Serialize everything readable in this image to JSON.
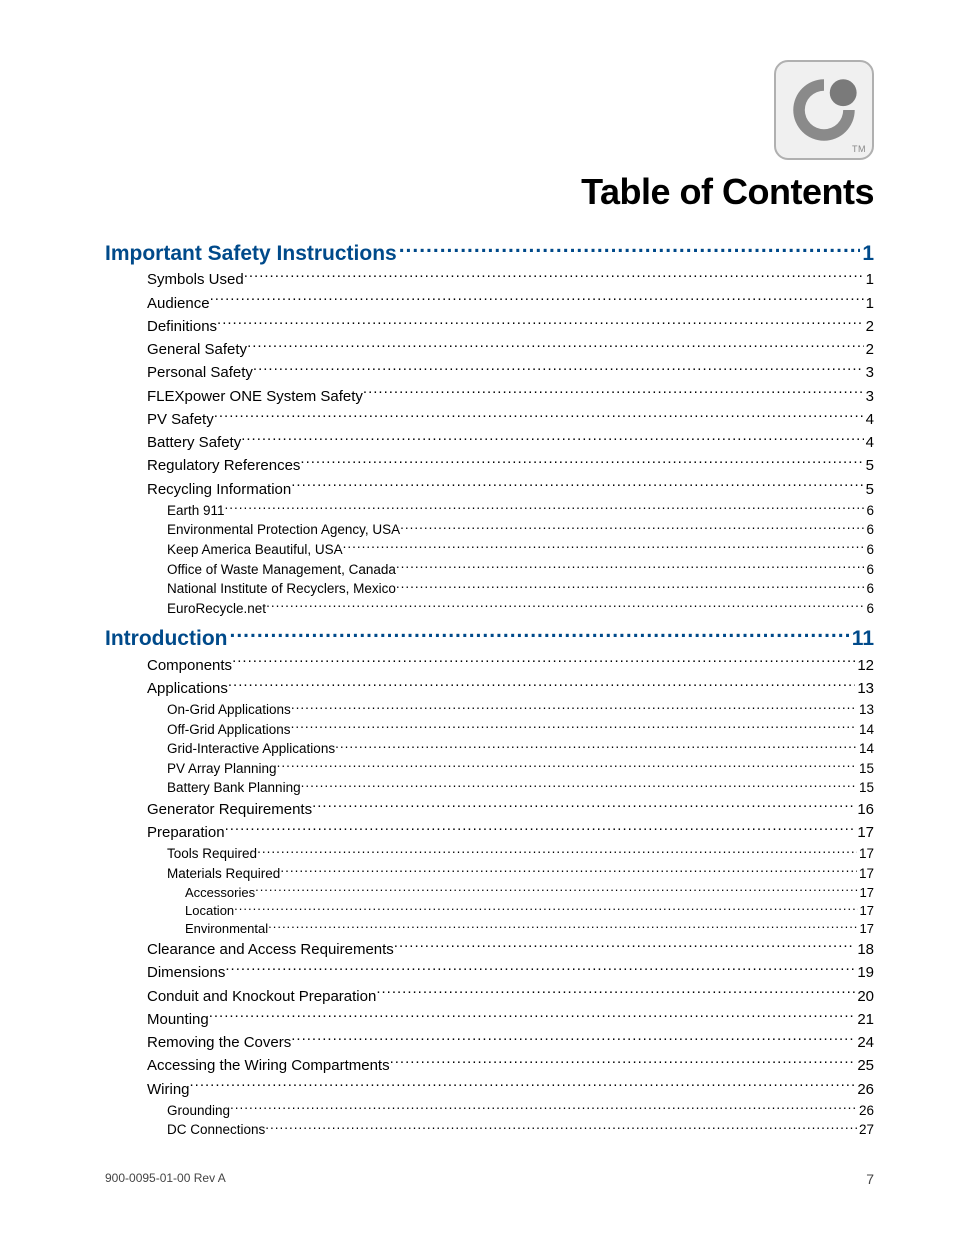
{
  "title": "Table of Contents",
  "footer": {
    "doc_id": "900-0095-01-00 Rev A",
    "page_num": "7"
  },
  "colors": {
    "heading_blue": "#004a8a",
    "text": "#000000",
    "logo_border": "#b0b0b0",
    "logo_bg": "#f0f0f0",
    "logo_swirl": "#8a8a8a",
    "logo_dot": "#7a7a7a"
  },
  "typography": {
    "title_fontsize": 36,
    "title_weight": 800,
    "lvl0_fontsize": 21,
    "lvl0_weight": 800,
    "lvl1_fontsize": 15,
    "lvl2_fontsize": 13.5,
    "lvl3_fontsize": 13
  },
  "toc": [
    {
      "level": 0,
      "label": "Important Safety Instructions ",
      "page": "1"
    },
    {
      "level": 1,
      "label": "Symbols Used",
      "page": "1"
    },
    {
      "level": 1,
      "label": "Audience",
      "page": "1"
    },
    {
      "level": 1,
      "label": "Definitions",
      "page": "2"
    },
    {
      "level": 1,
      "label": "General Safety",
      "page": "2"
    },
    {
      "level": 1,
      "label": "Personal Safety",
      "page": "3"
    },
    {
      "level": 1,
      "label": "FLEXpower ONE System Safety",
      "page": "3"
    },
    {
      "level": 1,
      "label": "PV Safety",
      "page": "4"
    },
    {
      "level": 1,
      "label": "Battery Safety",
      "page": "4"
    },
    {
      "level": 1,
      "label": "Regulatory References",
      "page": "5"
    },
    {
      "level": 1,
      "label": "Recycling Information",
      "page": "5"
    },
    {
      "level": 2,
      "label": "Earth 911",
      "page": "6"
    },
    {
      "level": 2,
      "label": "Environmental Protection Agency, USA",
      "page": "6"
    },
    {
      "level": 2,
      "label": "Keep America Beautiful, USA",
      "page": "6"
    },
    {
      "level": 2,
      "label": "Office of Waste Management, Canada",
      "page": "6"
    },
    {
      "level": 2,
      "label": "National Institute of Recyclers, Mexico",
      "page": "6"
    },
    {
      "level": 2,
      "label": "EuroRecycle.net",
      "page": "6"
    },
    {
      "level": 0,
      "label": "Introduction",
      "page": "11"
    },
    {
      "level": 1,
      "label": "Components",
      "page": "12"
    },
    {
      "level": 1,
      "label": "Applications",
      "page": "13"
    },
    {
      "level": 2,
      "label": "On-Grid Applications",
      "page": "13"
    },
    {
      "level": 2,
      "label": "Off-Grid Applications",
      "page": "14"
    },
    {
      "level": 2,
      "label": "Grid-Interactive Applications",
      "page": "14"
    },
    {
      "level": 2,
      "label": "PV Array Planning",
      "page": "15"
    },
    {
      "level": 2,
      "label": "Battery Bank Planning",
      "page": "15"
    },
    {
      "level": 1,
      "label": "Generator Requirements",
      "page": "16"
    },
    {
      "level": 1,
      "label": "Preparation",
      "page": "17"
    },
    {
      "level": 2,
      "label": "Tools Required",
      "page": "17"
    },
    {
      "level": 2,
      "label": "Materials Required",
      "page": "17"
    },
    {
      "level": 3,
      "label": "Accessories",
      "page": "17"
    },
    {
      "level": 3,
      "label": "Location",
      "page": "17"
    },
    {
      "level": 3,
      "label": "Environmental",
      "page": "17"
    },
    {
      "level": 1,
      "label": "Clearance and Access Requirements",
      "page": " 18"
    },
    {
      "level": 1,
      "label": "Dimensions",
      "page": " 19"
    },
    {
      "level": 1,
      "label": "Conduit and Knockout Preparation",
      "page": " 20"
    },
    {
      "level": 1,
      "label": "Mounting",
      "page": " 21"
    },
    {
      "level": 1,
      "label": "Removing the Covers",
      "page": " 24"
    },
    {
      "level": 1,
      "label": "Accessing the Wiring Compartments",
      "page": " 25"
    },
    {
      "level": 1,
      "label": "Wiring",
      "page": " 26"
    },
    {
      "level": 2,
      "label": "Grounding",
      "page": "26"
    },
    {
      "level": 2,
      "label": "DC Connections",
      "page": "27"
    }
  ]
}
